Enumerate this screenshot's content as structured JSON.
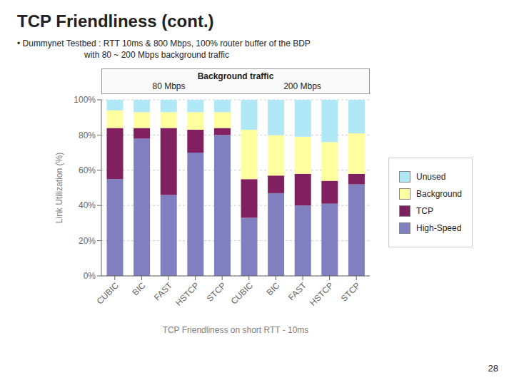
{
  "chart_data": {
    "type": "bar",
    "title": "TCP Friendliness (cont.)",
    "subtitle": [
      "• Dummynet Testbed : RTT 10ms & 800 Mbps, 100% router buffer of the BDP",
      "with 80 ~ 200 Mbps background traffic"
    ],
    "annotations": [
      "Background traffic",
      "80 Mbps",
      "200 Mbps",
      "28"
    ],
    "xlabel": "TCP Friendliness on short RTT - 10ms",
    "ylabel": "Link Utilization (%)",
    "categories": [
      "CUBIC",
      "BIC",
      "FAST",
      "HSTCP",
      "STCP",
      "CUBIC",
      "BIC",
      "FAST",
      "HSTCP",
      "STCP"
    ],
    "series": [
      {
        "name": "High-Speed",
        "color": "#8080c0",
        "values": [
          55,
          78,
          46,
          70,
          80,
          33,
          47,
          40,
          41,
          52
        ]
      },
      {
        "name": "TCP",
        "color": "#802060",
        "values": [
          29,
          6,
          38,
          13,
          4,
          22,
          10,
          18,
          13,
          6
        ]
      },
      {
        "name": "Background",
        "color": "#ffffa0",
        "values": [
          10,
          9,
          9,
          10,
          9,
          28,
          23,
          21,
          22,
          23
        ]
      },
      {
        "name": "Unused",
        "color": "#b0e8f8",
        "values": [
          6,
          7,
          7,
          7,
          7,
          17,
          20,
          21,
          24,
          19
        ]
      }
    ],
    "stacked": true,
    "grid": true,
    "legend": "right",
    "ylim": [
      0,
      100
    ],
    "yticks": [
      {
        "value": 0,
        "label": "0%"
      },
      {
        "value": 20,
        "label": "20%"
      },
      {
        "value": 40,
        "label": "40%"
      },
      {
        "value": 60,
        "label": "60%"
      },
      {
        "value": 80,
        "label": "80%"
      },
      {
        "value": 100,
        "label": "100%"
      }
    ]
  }
}
